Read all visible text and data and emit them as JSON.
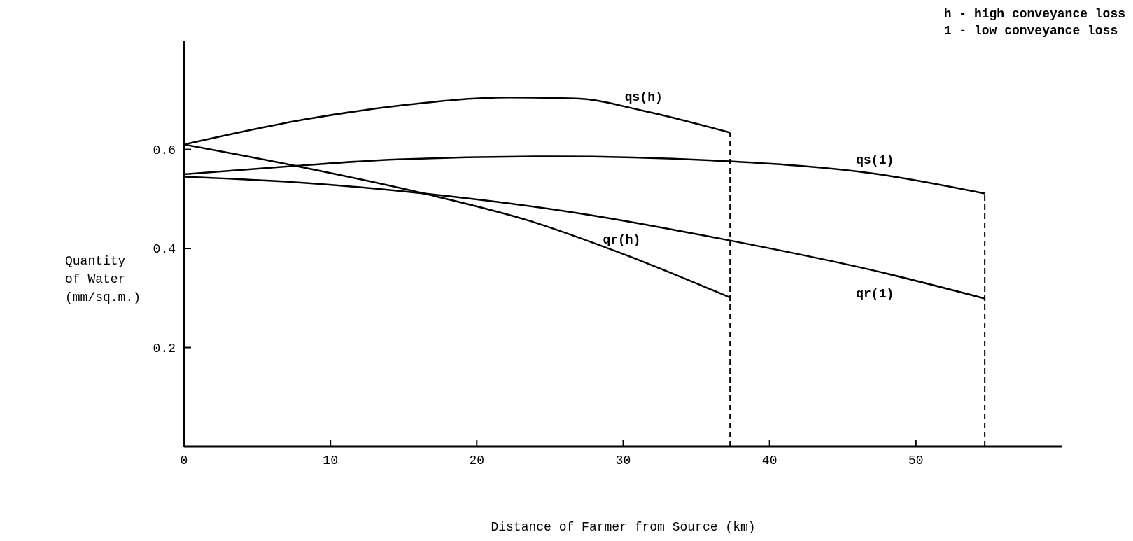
{
  "chart_data": {
    "type": "line",
    "xlabel": "Distance of Farmer from Source (km)",
    "ylabel": "Quantity\nof Water\n(mm/sq.m.)",
    "xlim": [
      0,
      60
    ],
    "xticks": [
      {
        "value": 0,
        "label": "0"
      },
      10,
      20,
      30,
      40,
      50
    ],
    "ylim": [
      0,
      0.82
    ],
    "yticks": [
      0.2,
      0.4,
      0.6
    ],
    "marker": "none",
    "line_style": "solid",
    "series": [
      {
        "name": "qs(h)",
        "color": "#000000",
        "x": [
          0,
          8.5,
          14.6,
          22.2,
          26.8,
          31.4,
          37.3
        ],
        "values": [
          0.61,
          0.662,
          0.688,
          0.705,
          0.703,
          0.678,
          0.634
        ]
      },
      {
        "name": "qs(1)",
        "color": "#000000",
        "x": [
          0,
          7.6,
          14.6,
          25.3,
          37.3,
          47.2,
          54.7
        ],
        "values": [
          0.55,
          0.567,
          0.58,
          0.586,
          0.576,
          0.551,
          0.511
        ]
      },
      {
        "name": "qr(1)",
        "color": "#000000",
        "x": [
          0,
          8.5,
          16.4,
          26.8,
          36.8,
          47.2,
          54.7
        ],
        "values": [
          0.545,
          0.532,
          0.511,
          0.472,
          0.419,
          0.355,
          0.299
        ]
      },
      {
        "name": "qr(h)",
        "color": "#000000",
        "x": [
          0,
          7.6,
          16.4,
          23.7,
          29.9,
          37.3
        ],
        "values": [
          0.61,
          0.567,
          0.511,
          0.455,
          0.39,
          0.301
        ]
      }
    ],
    "ref_lines": [
      {
        "axis": "x",
        "value": 37.3,
        "line_style": "dashed"
      },
      {
        "axis": "x",
        "value": 54.7,
        "line_style": "dashed"
      }
    ],
    "annotations": [
      "h - high conveyance loss",
      "1 - low conveyance loss"
    ]
  }
}
